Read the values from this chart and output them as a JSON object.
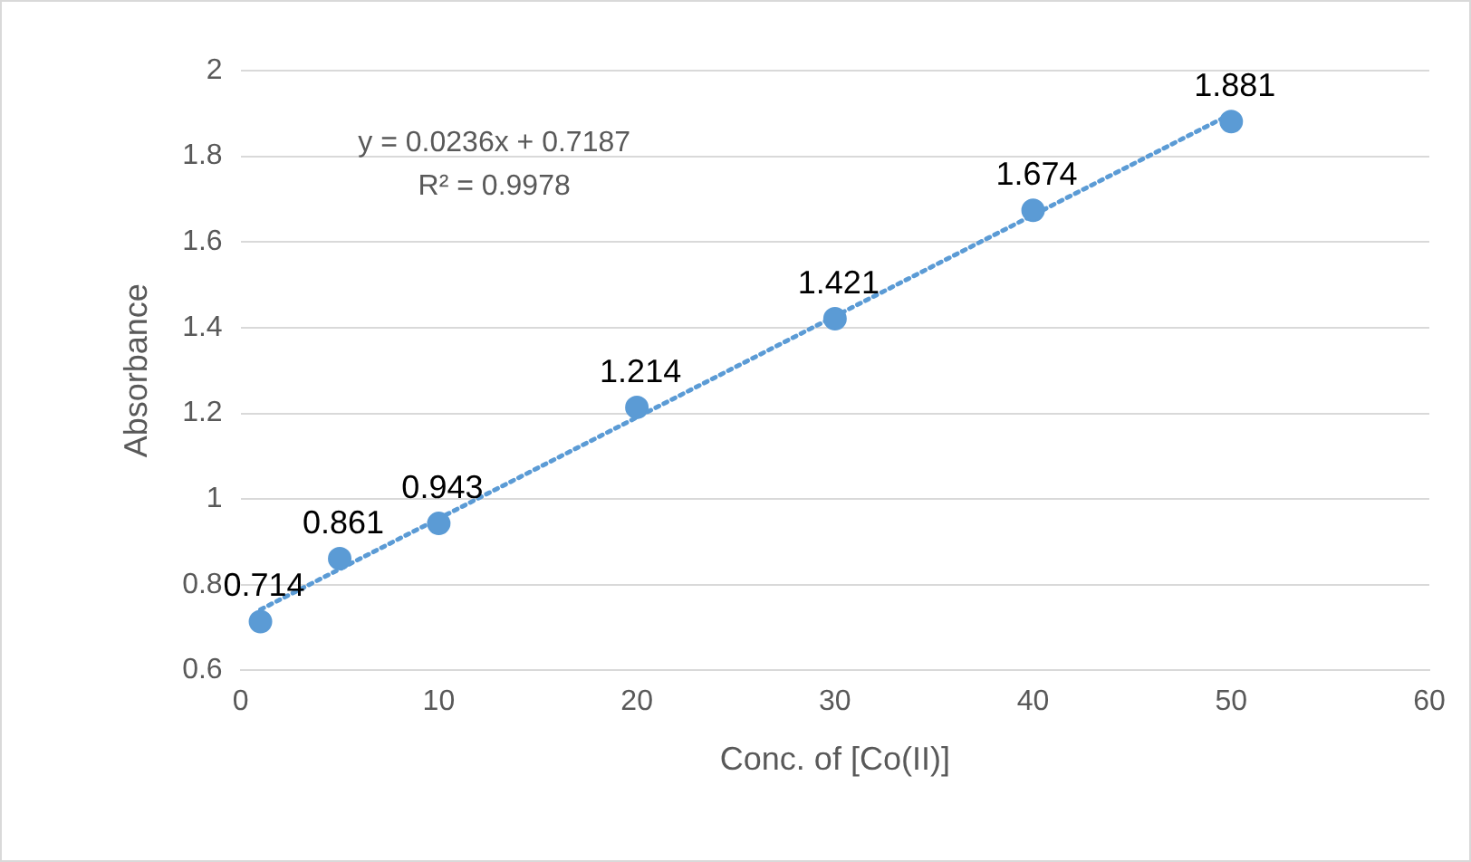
{
  "chart_data": {
    "type": "scatter",
    "xlabel": "Conc. of [Co(II)]",
    "ylabel": "Absorbance",
    "series": [
      {
        "type": "scatter",
        "color": "#5b9bd5",
        "x": [
          1,
          5,
          10,
          20,
          30,
          40,
          50
        ],
        "values": [
          0.714,
          0.861,
          0.943,
          1.214,
          1.421,
          1.674,
          1.881
        ],
        "marker": "circle",
        "value_labels": [
          "0.714",
          "0.861",
          "0.943",
          "1.214",
          "1.421",
          "1.674",
          "1.881"
        ]
      },
      {
        "type": "line",
        "color": "#5b9bd5",
        "x": [
          1,
          50
        ],
        "values": [
          0.742,
          1.899
        ],
        "line_style": "dotted",
        "marker": "none"
      }
    ],
    "annotations": [
      "y = 0.0236x + 0.7187",
      "R² = 0.9978"
    ],
    "grid": "y",
    "legend": false,
    "xlim": [
      0,
      60
    ],
    "xticks": [
      0,
      10,
      20,
      30,
      40,
      50,
      60
    ],
    "ylim": [
      0.6,
      2
    ],
    "yticks": [
      0.6,
      0.8,
      1,
      1.2,
      1.4,
      1.6,
      1.8,
      2
    ]
  }
}
